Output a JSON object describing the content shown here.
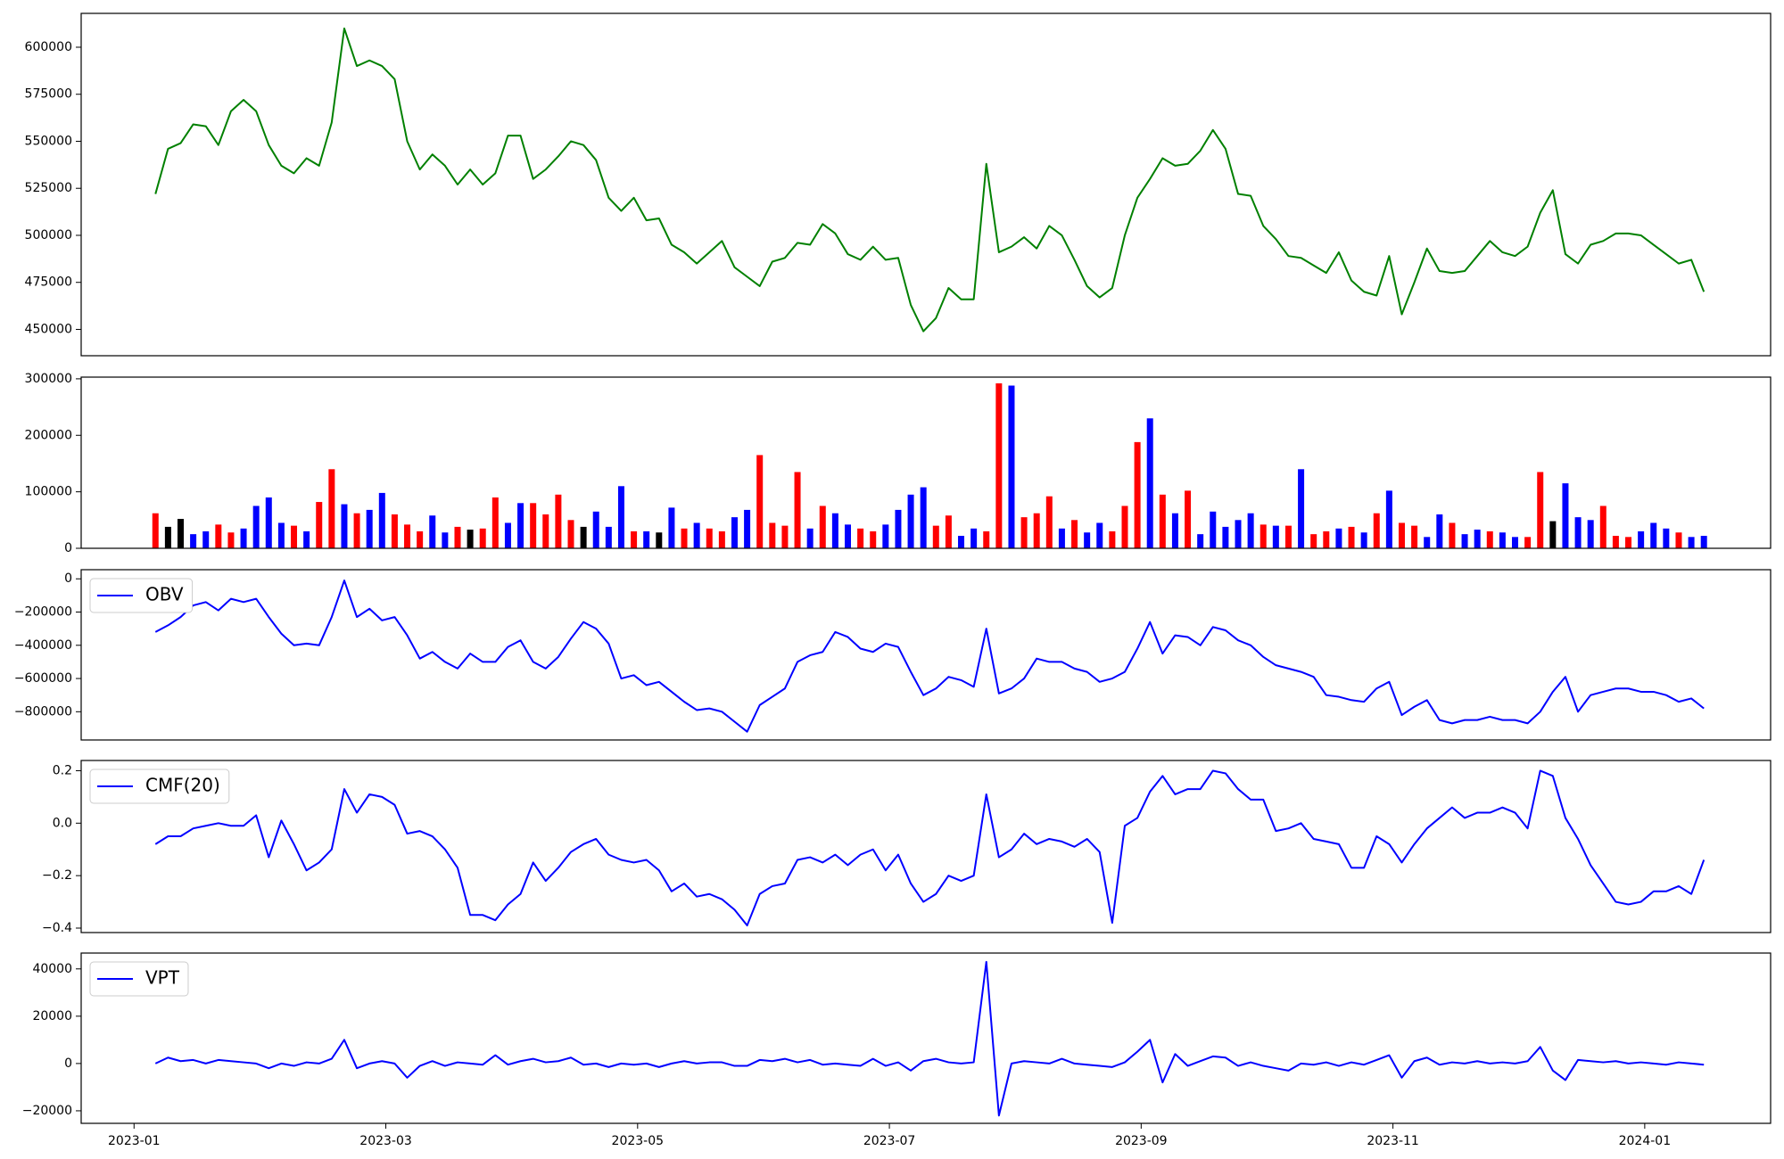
{
  "chart_data": [
    {
      "type": "line",
      "color": "green",
      "ylim": [
        436000,
        618000
      ],
      "yticks": [
        450000,
        475000,
        500000,
        525000,
        550000,
        575000,
        600000
      ],
      "values": [
        522000,
        546000,
        549000,
        559000,
        558000,
        548000,
        566000,
        572000,
        566000,
        548000,
        537000,
        533000,
        541000,
        537000,
        560000,
        610000,
        590000,
        593000,
        590000,
        583000,
        550000,
        535000,
        543000,
        537000,
        527000,
        535000,
        527000,
        533000,
        553000,
        553000,
        530000,
        535000,
        542000,
        550000,
        548000,
        540000,
        520000,
        513000,
        520000,
        508000,
        509000,
        495000,
        491000,
        485000,
        491000,
        497000,
        483000,
        478000,
        473000,
        486000,
        488000,
        496000,
        495000,
        506000,
        501000,
        490000,
        487000,
        494000,
        487000,
        488000,
        463000,
        449000,
        456000,
        472000,
        466000,
        466000,
        538000,
        491000,
        494000,
        499000,
        493000,
        505000,
        500000,
        487000,
        473000,
        467000,
        472000,
        500000,
        520000,
        530000,
        541000,
        537000,
        538000,
        545000,
        556000,
        546000,
        522000,
        521000,
        505000,
        498000,
        489000,
        488000,
        484000,
        480000,
        491000,
        476000,
        470000,
        468000,
        489000,
        458000,
        475000,
        493000,
        481000,
        480000,
        481000,
        489000,
        497000,
        491000,
        489000,
        494000,
        512000,
        524000,
        490000,
        485000,
        495000,
        497000,
        501000,
        501000,
        500000,
        495000,
        490000,
        485000,
        487000,
        470000
      ]
    },
    {
      "type": "bar",
      "ylim": [
        0,
        303000
      ],
      "yticks": [
        0,
        100000,
        200000,
        300000
      ],
      "values": [
        62000,
        38000,
        52000,
        25000,
        30000,
        42000,
        28000,
        35000,
        75000,
        90000,
        45000,
        40000,
        30000,
        82000,
        140000,
        78000,
        62000,
        68000,
        98000,
        60000,
        42000,
        30000,
        58000,
        28000,
        38000,
        33000,
        35000,
        90000,
        45000,
        80000,
        80000,
        60000,
        95000,
        50000,
        38000,
        65000,
        38000,
        110000,
        30000,
        30000,
        28000,
        72000,
        35000,
        45000,
        35000,
        30000,
        55000,
        68000,
        165000,
        45000,
        40000,
        135000,
        35000,
        75000,
        62000,
        42000,
        35000,
        30000,
        42000,
        68000,
        95000,
        108000,
        40000,
        58000,
        22000,
        35000,
        30000,
        292000,
        288000,
        55000,
        62000,
        92000,
        35000,
        50000,
        28000,
        45000,
        30000,
        75000,
        188000,
        230000,
        95000,
        62000,
        102000,
        25000,
        65000,
        38000,
        50000,
        62000,
        42000,
        40000,
        40000,
        140000,
        25000,
        30000,
        35000,
        38000,
        28000,
        62000,
        102000,
        45000,
        40000,
        20000,
        60000,
        45000,
        25000,
        33000,
        30000,
        28000,
        20000,
        20000,
        135000,
        48000,
        115000,
        55000,
        50000,
        75000,
        22000,
        20000,
        30000,
        45000,
        35000,
        28000,
        20000,
        22000
      ],
      "colors": [
        "red",
        "black",
        "black",
        "blue",
        "blue",
        "red",
        "red",
        "blue",
        "blue",
        "blue",
        "blue",
        "red",
        "blue",
        "red",
        "red",
        "blue",
        "red",
        "blue",
        "blue",
        "red",
        "red",
        "red",
        "blue",
        "blue",
        "red",
        "black",
        "red",
        "red",
        "blue",
        "blue",
        "red",
        "red",
        "red",
        "red",
        "black",
        "blue",
        "blue",
        "blue",
        "red",
        "blue",
        "black",
        "blue",
        "red",
        "blue",
        "red",
        "red",
        "blue",
        "blue",
        "red",
        "red",
        "red",
        "red",
        "blue",
        "red",
        "blue",
        "blue",
        "red",
        "red",
        "blue",
        "blue",
        "blue",
        "blue",
        "red",
        "red",
        "blue",
        "blue",
        "red",
        "red",
        "blue",
        "red",
        "red",
        "red",
        "blue",
        "red",
        "blue",
        "blue",
        "red",
        "red",
        "red",
        "blue",
        "red",
        "blue",
        "red",
        "blue",
        "blue",
        "blue",
        "blue",
        "blue",
        "red",
        "blue",
        "red",
        "blue",
        "red",
        "red",
        "blue",
        "red",
        "blue",
        "red",
        "blue",
        "red",
        "red",
        "blue",
        "blue",
        "red",
        "blue",
        "blue",
        "red",
        "blue",
        "blue",
        "red",
        "red",
        "black",
        "blue",
        "blue",
        "blue",
        "red",
        "red",
        "red",
        "blue",
        "blue",
        "blue",
        "red",
        "blue",
        "blue"
      ]
    },
    {
      "type": "line",
      "legend": "upper left",
      "ylim": [
        -970000,
        55000
      ],
      "yticks": [
        {
          "value": -800000,
          "label": "−800000"
        },
        {
          "value": -600000,
          "label": "−600000"
        },
        {
          "value": -400000,
          "label": "−400000"
        },
        {
          "value": -200000,
          "label": "−200000"
        },
        0
      ],
      "series": [
        {
          "name": "OBV",
          "color": "blue",
          "values": [
            -320000,
            -280000,
            -230000,
            -160000,
            -140000,
            -190000,
            -120000,
            -140000,
            -120000,
            -230000,
            -330000,
            -400000,
            -390000,
            -400000,
            -230000,
            -10000,
            -230000,
            -180000,
            -250000,
            -230000,
            -340000,
            -480000,
            -440000,
            -500000,
            -540000,
            -450000,
            -500000,
            -500000,
            -410000,
            -370000,
            -500000,
            -540000,
            -470000,
            -360000,
            -260000,
            -300000,
            -390000,
            -600000,
            -580000,
            -640000,
            -620000,
            -680000,
            -740000,
            -790000,
            -780000,
            -800000,
            -860000,
            -920000,
            -760000,
            -710000,
            -660000,
            -500000,
            -460000,
            -440000,
            -320000,
            -350000,
            -420000,
            -440000,
            -390000,
            -410000,
            -560000,
            -700000,
            -660000,
            -590000,
            -610000,
            -650000,
            -300000,
            -690000,
            -660000,
            -600000,
            -480000,
            -500000,
            -500000,
            -540000,
            -560000,
            -620000,
            -600000,
            -560000,
            -420000,
            -260000,
            -450000,
            -340000,
            -350000,
            -400000,
            -290000,
            -310000,
            -370000,
            -400000,
            -470000,
            -520000,
            -540000,
            -560000,
            -590000,
            -700000,
            -710000,
            -730000,
            -740000,
            -660000,
            -620000,
            -820000,
            -770000,
            -730000,
            -850000,
            -870000,
            -850000,
            -850000,
            -830000,
            -850000,
            -850000,
            -870000,
            -800000,
            -680000,
            -590000,
            -800000,
            -700000,
            -680000,
            -660000,
            -660000,
            -680000,
            -680000,
            -700000,
            -740000,
            -720000,
            -780000
          ]
        }
      ]
    },
    {
      "type": "line",
      "legend": "upper left",
      "ylim": [
        -0.417,
        0.239
      ],
      "yticks": [
        {
          "value": -0.4,
          "label": "−0.4"
        },
        {
          "value": -0.2,
          "label": "−0.2"
        },
        {
          "value": 0,
          "label": "0.0"
        },
        0.2
      ],
      "series": [
        {
          "name": "CMF(20)",
          "color": "blue",
          "values": [
            -0.08,
            -0.05,
            -0.05,
            -0.02,
            -0.01,
            0.0,
            -0.01,
            -0.01,
            0.03,
            -0.13,
            0.01,
            -0.08,
            -0.18,
            -0.15,
            -0.1,
            0.13,
            0.04,
            0.11,
            0.1,
            0.07,
            -0.04,
            -0.03,
            -0.05,
            -0.1,
            -0.17,
            -0.35,
            -0.35,
            -0.37,
            -0.31,
            -0.27,
            -0.15,
            -0.22,
            -0.17,
            -0.11,
            -0.08,
            -0.06,
            -0.12,
            -0.14,
            -0.15,
            -0.14,
            -0.18,
            -0.26,
            -0.23,
            -0.28,
            -0.27,
            -0.29,
            -0.33,
            -0.39,
            -0.27,
            -0.24,
            -0.23,
            -0.14,
            -0.13,
            -0.15,
            -0.12,
            -0.16,
            -0.12,
            -0.1,
            -0.18,
            -0.12,
            -0.23,
            -0.3,
            -0.27,
            -0.2,
            -0.22,
            -0.2,
            0.11,
            -0.13,
            -0.1,
            -0.04,
            -0.08,
            -0.06,
            -0.07,
            -0.09,
            -0.06,
            -0.11,
            -0.38,
            -0.01,
            0.02,
            0.12,
            0.18,
            0.11,
            0.13,
            0.13,
            0.2,
            0.19,
            0.13,
            0.09,
            0.09,
            -0.03,
            -0.02,
            0.0,
            -0.06,
            -0.07,
            -0.08,
            -0.17,
            -0.17,
            -0.05,
            -0.08,
            -0.15,
            -0.08,
            -0.02,
            0.02,
            0.06,
            0.02,
            0.04,
            0.04,
            0.06,
            0.04,
            -0.02,
            0.2,
            0.18,
            0.02,
            -0.06,
            -0.16,
            -0.23,
            -0.3,
            -0.31,
            -0.3,
            -0.26,
            -0.26,
            -0.24,
            -0.27,
            -0.14
          ]
        }
      ]
    },
    {
      "type": "line",
      "legend": "upper left",
      "ylim": [
        -25300,
        46700
      ],
      "yticks": [
        {
          "value": -20000,
          "label": "−20000"
        },
        0,
        20000,
        40000
      ],
      "xlim": [
        -0.42,
        13.0
      ],
      "xticks": [
        {
          "value": 0,
          "label": "2023-01"
        },
        {
          "value": 2,
          "label": "2023-03"
        },
        {
          "value": 4,
          "label": "2023-05"
        },
        {
          "value": 6,
          "label": "2023-07"
        },
        {
          "value": 8,
          "label": "2023-09"
        },
        {
          "value": 10,
          "label": "2023-11"
        },
        {
          "value": 12,
          "label": "2024-01"
        }
      ],
      "x": [
        0.17,
        0.27,
        0.37,
        0.47,
        0.57,
        0.67,
        0.77,
        0.87,
        0.97,
        1.07,
        1.17,
        1.27,
        1.37,
        1.47,
        1.57,
        1.67,
        1.77,
        1.87,
        1.97,
        2.07,
        2.17,
        2.27,
        2.37,
        2.47,
        2.57,
        2.67,
        2.77,
        2.87,
        2.97,
        3.07,
        3.17,
        3.27,
        3.37,
        3.47,
        3.57,
        3.67,
        3.77,
        3.87,
        3.97,
        4.07,
        4.17,
        4.27,
        4.37,
        4.47,
        4.57,
        4.67,
        4.77,
        4.87,
        4.97,
        5.07,
        5.17,
        5.27,
        5.37,
        5.47,
        5.57,
        5.67,
        5.77,
        5.87,
        5.97,
        6.07,
        6.17,
        6.27,
        6.37,
        6.47,
        6.57,
        6.67,
        6.77,
        6.87,
        6.97,
        7.07,
        7.17,
        7.27,
        7.37,
        7.47,
        7.57,
        7.67,
        7.77,
        7.87,
        7.97,
        8.07,
        8.17,
        8.27,
        8.37,
        8.47,
        8.57,
        8.67,
        8.77,
        8.87,
        8.97,
        9.07,
        9.17,
        9.27,
        9.37,
        9.47,
        9.57,
        9.67,
        9.77,
        9.87,
        9.97,
        10.07,
        10.17,
        10.27,
        10.37,
        10.47,
        10.57,
        10.67,
        10.77,
        10.87,
        10.97,
        11.07,
        11.17,
        11.27,
        11.37,
        11.47,
        11.57,
        11.67,
        11.77,
        11.87,
        11.97,
        12.07,
        12.17,
        12.27,
        12.37,
        12.47
      ],
      "series": [
        {
          "name": "VPT",
          "color": "blue",
          "values": [
            0,
            2500,
            1000,
            1500,
            0,
            1500,
            1000,
            500,
            0,
            -2000,
            0,
            -1000,
            500,
            0,
            2000,
            10000,
            -2000,
            0,
            1000,
            0,
            -6000,
            -1000,
            1000,
            -1000,
            500,
            0,
            -500,
            3500,
            -500,
            1000,
            2000,
            500,
            1000,
            2500,
            -500,
            0,
            -1500,
            0,
            -500,
            0,
            -1500,
            0,
            1000,
            0,
            500,
            500,
            -1000,
            -1000,
            1500,
            1000,
            2000,
            500,
            1500,
            -500,
            0,
            -500,
            -1000,
            2000,
            -1000,
            500,
            -3000,
            1000,
            2000,
            500,
            0,
            500,
            43000,
            -22000,
            0,
            1000,
            500,
            0,
            2000,
            0,
            -500,
            -1000,
            -1500,
            500,
            5000,
            10000,
            -8000,
            4000,
            -1000,
            1000,
            3000,
            2500,
            -1000,
            500,
            -1000,
            -2000,
            -3000,
            0,
            -500,
            500,
            -1000,
            500,
            -500,
            1500,
            3500,
            -6000,
            1000,
            2500,
            -500,
            500,
            0,
            1000,
            0,
            500,
            0,
            1000,
            7000,
            -3000,
            -7000,
            1500,
            1000,
            500,
            1000,
            0,
            500,
            0,
            -500,
            500,
            0,
            -500
          ]
        }
      ]
    }
  ]
}
